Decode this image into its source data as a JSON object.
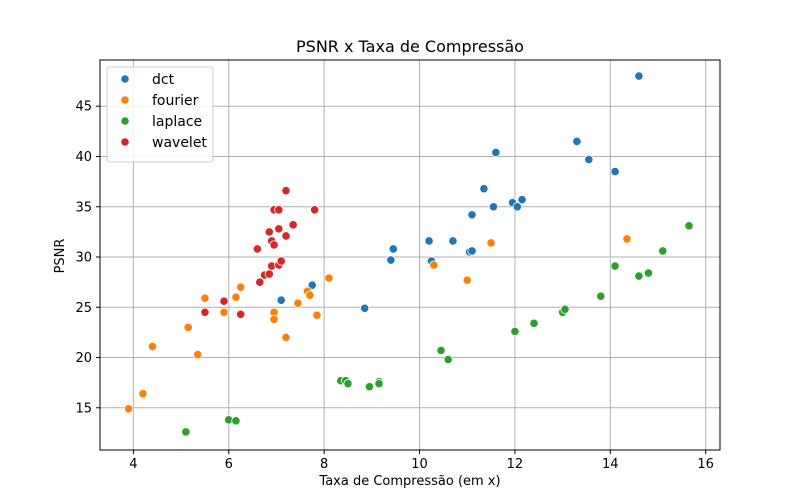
{
  "chart_data": {
    "type": "scatter",
    "title": "PSNR x Taxa de Compressão",
    "xlabel": "Taxa de Compressão (em x)",
    "ylabel": "PSNR",
    "xlim": [
      3.3,
      16.3
    ],
    "ylim": [
      10.8,
      49.6
    ],
    "xticks": [
      4,
      6,
      8,
      10,
      12,
      14,
      16
    ],
    "yticks": [
      15,
      20,
      25,
      30,
      35,
      40,
      45
    ],
    "grid": true,
    "legend_position": "top-left",
    "series": [
      {
        "name": "dct",
        "color": "#1f77b4",
        "points": [
          [
            7.1,
            25.7
          ],
          [
            7.75,
            27.2
          ],
          [
            8.85,
            24.9
          ],
          [
            9.4,
            29.7
          ],
          [
            9.45,
            30.8
          ],
          [
            10.2,
            31.6
          ],
          [
            10.25,
            29.6
          ],
          [
            10.7,
            31.6
          ],
          [
            11.05,
            30.5
          ],
          [
            11.1,
            30.6
          ],
          [
            11.1,
            34.2
          ],
          [
            11.35,
            36.8
          ],
          [
            11.55,
            35.0
          ],
          [
            11.6,
            40.4
          ],
          [
            11.95,
            35.4
          ],
          [
            12.05,
            35.0
          ],
          [
            12.15,
            35.7
          ],
          [
            13.3,
            41.5
          ],
          [
            13.55,
            39.7
          ],
          [
            14.1,
            38.5
          ],
          [
            14.6,
            48.0
          ]
        ]
      },
      {
        "name": "fourier",
        "color": "#ff7f0e",
        "points": [
          [
            3.9,
            14.9
          ],
          [
            4.2,
            16.4
          ],
          [
            4.4,
            21.1
          ],
          [
            5.15,
            23.0
          ],
          [
            5.35,
            20.3
          ],
          [
            5.5,
            25.9
          ],
          [
            5.9,
            24.5
          ],
          [
            6.15,
            26.0
          ],
          [
            6.25,
            27.0
          ],
          [
            6.95,
            24.5
          ],
          [
            6.95,
            23.8
          ],
          [
            7.2,
            22.0
          ],
          [
            7.45,
            25.4
          ],
          [
            7.65,
            26.6
          ],
          [
            7.7,
            26.2
          ],
          [
            7.85,
            24.2
          ],
          [
            8.1,
            27.9
          ],
          [
            10.3,
            29.2
          ],
          [
            11.0,
            27.7
          ],
          [
            11.5,
            31.4
          ],
          [
            14.35,
            31.8
          ]
        ]
      },
      {
        "name": "laplace",
        "color": "#2ca02c",
        "points": [
          [
            5.1,
            12.6
          ],
          [
            6.0,
            13.8
          ],
          [
            6.15,
            13.7
          ],
          [
            8.35,
            17.7
          ],
          [
            8.45,
            17.7
          ],
          [
            8.5,
            17.4
          ],
          [
            8.95,
            17.1
          ],
          [
            9.15,
            17.6
          ],
          [
            9.15,
            17.4
          ],
          [
            10.45,
            20.7
          ],
          [
            10.6,
            19.8
          ],
          [
            12.0,
            22.6
          ],
          [
            12.4,
            23.4
          ],
          [
            13.0,
            24.5
          ],
          [
            13.05,
            24.8
          ],
          [
            13.8,
            26.1
          ],
          [
            14.1,
            29.1
          ],
          [
            14.6,
            28.1
          ],
          [
            14.8,
            28.4
          ],
          [
            15.1,
            30.6
          ],
          [
            15.65,
            33.1
          ]
        ]
      },
      {
        "name": "wavelet",
        "color": "#d62728",
        "points": [
          [
            5.5,
            24.5
          ],
          [
            5.9,
            25.6
          ],
          [
            6.25,
            24.3
          ],
          [
            6.6,
            30.8
          ],
          [
            6.65,
            27.5
          ],
          [
            6.75,
            28.2
          ],
          [
            6.85,
            28.3
          ],
          [
            6.85,
            32.5
          ],
          [
            6.9,
            31.6
          ],
          [
            6.9,
            29.1
          ],
          [
            6.95,
            31.2
          ],
          [
            6.95,
            34.7
          ],
          [
            7.05,
            32.8
          ],
          [
            7.05,
            34.7
          ],
          [
            7.05,
            29.2
          ],
          [
            7.1,
            29.6
          ],
          [
            7.2,
            32.1
          ],
          [
            7.2,
            36.6
          ],
          [
            7.35,
            33.2
          ],
          [
            7.8,
            34.7
          ]
        ]
      }
    ]
  }
}
